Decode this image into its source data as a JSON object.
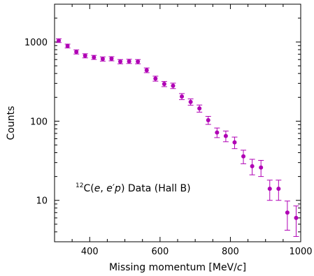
{
  "chart_data": {
    "type": "scatter",
    "xlabel_main": "Missing momentum [MeV/",
    "xlabel_italic": "c",
    "xlabel_end": "]",
    "ylabel": "Counts",
    "xlim": [
      300,
      1000
    ],
    "ylim": [
      3,
      3000
    ],
    "yscale": "log",
    "x_ticks": [
      400,
      600,
      800,
      1000
    ],
    "x_tick_labels": [
      "400",
      "600",
      "800",
      "1000"
    ],
    "y_ticks": [
      10,
      100,
      1000
    ],
    "y_tick_labels": [
      "10",
      "100",
      "1000"
    ],
    "annotation": {
      "superscript": "12",
      "prefix": "C(",
      "e1": "e",
      "comma": ", ",
      "e2": "e",
      "prime": "′",
      "p": "p",
      "suffix": ") Data (Hall B)"
    },
    "marker_color": "#b000b5",
    "points": [
      {
        "x": 312,
        "y": 1040,
        "err": 55
      },
      {
        "x": 337,
        "y": 890,
        "err": 50
      },
      {
        "x": 362,
        "y": 750,
        "err": 45
      },
      {
        "x": 387,
        "y": 670,
        "err": 40
      },
      {
        "x": 412,
        "y": 640,
        "err": 38
      },
      {
        "x": 437,
        "y": 610,
        "err": 37
      },
      {
        "x": 462,
        "y": 615,
        "err": 37
      },
      {
        "x": 487,
        "y": 565,
        "err": 35
      },
      {
        "x": 512,
        "y": 570,
        "err": 35
      },
      {
        "x": 537,
        "y": 565,
        "err": 35
      },
      {
        "x": 562,
        "y": 440,
        "err": 30
      },
      {
        "x": 587,
        "y": 345,
        "err": 25
      },
      {
        "x": 612,
        "y": 295,
        "err": 22
      },
      {
        "x": 637,
        "y": 280,
        "err": 22
      },
      {
        "x": 662,
        "y": 205,
        "err": 18
      },
      {
        "x": 687,
        "y": 175,
        "err": 16
      },
      {
        "x": 712,
        "y": 145,
        "err": 15
      },
      {
        "x": 737,
        "y": 103,
        "err": 12
      },
      {
        "x": 762,
        "y": 72,
        "err": 10
      },
      {
        "x": 787,
        "y": 65,
        "err": 10
      },
      {
        "x": 812,
        "y": 54,
        "err": 9
      },
      {
        "x": 837,
        "y": 36,
        "err": 7
      },
      {
        "x": 862,
        "y": 27,
        "err": 6
      },
      {
        "x": 887,
        "y": 26,
        "err": 6
      },
      {
        "x": 912,
        "y": 14,
        "err": 4
      },
      {
        "x": 937,
        "y": 14,
        "err": 4
      },
      {
        "x": 962,
        "y": 7,
        "err": 2.8
      },
      {
        "x": 987,
        "y": 6,
        "err": 2.5
      }
    ]
  }
}
